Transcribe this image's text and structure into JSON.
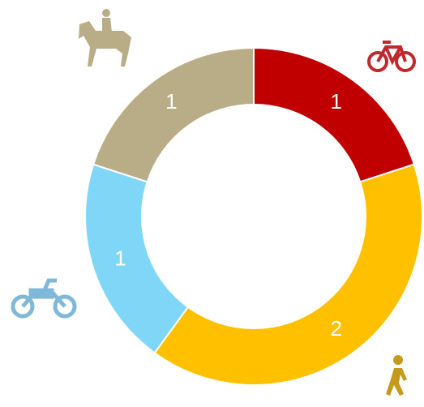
{
  "chart_data": {
    "type": "donut",
    "values": [
      1,
      2,
      1,
      1
    ],
    "colors": [
      "#c00000",
      "#ffc000",
      "#80d6f7",
      "#b9ad87"
    ]
  }
}
